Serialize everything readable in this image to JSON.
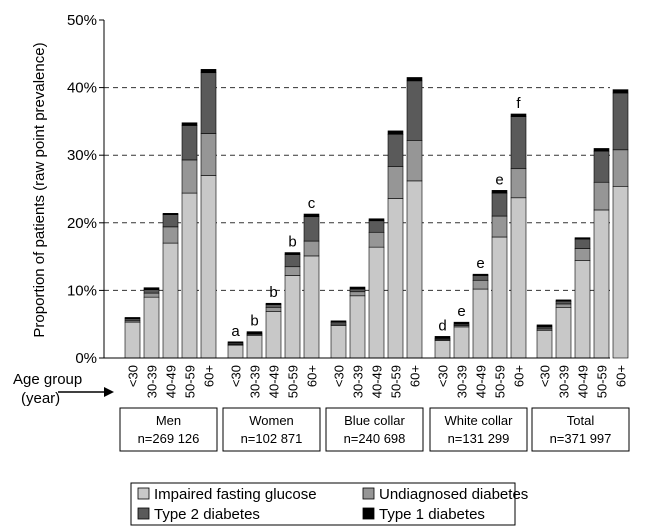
{
  "chart_data": {
    "type": "bar",
    "stacked": true,
    "ylabel": "Proportion of patients (raw point prevalence)",
    "ylim": [
      0,
      50
    ],
    "y_ticks": [
      "0%",
      "10%",
      "20%",
      "30%",
      "40%",
      "50%"
    ],
    "y_tick_values": [
      0,
      10,
      20,
      30,
      40,
      50
    ],
    "grid": "dashed horizontal lines at 10%, 20%, 30%, 40%",
    "x_axis_caption": [
      "Age group",
      "(year)"
    ],
    "age_categories": [
      "<30",
      "30-39",
      "40-49",
      "50-59",
      "60+"
    ],
    "colors": {
      "Impaired fasting glucose": "#c8c8c8",
      "Undiagnosed diabetes": "#969696",
      "Type 2 diabetes": "#5a5a5a",
      "Type 1 diabetes": "#000000"
    },
    "series_names": [
      "Impaired fasting glucose",
      "Undiagnosed diabetes",
      "Type 2 diabetes",
      "Type 1 diabetes"
    ],
    "groups": [
      {
        "title": "Men",
        "n": "n=269 126",
        "bars": [
          {
            "category": "<30",
            "values": [
              5.3,
              0.2,
              0.3,
              0.2
            ],
            "letter": ""
          },
          {
            "category": "30-39",
            "values": [
              9.0,
              0.6,
              0.5,
              0.3
            ],
            "letter": ""
          },
          {
            "category": "40-49",
            "values": [
              17.0,
              2.4,
              1.8,
              0.2
            ],
            "letter": ""
          },
          {
            "category": "50-59",
            "values": [
              24.4,
              4.9,
              5.1,
              0.4
            ],
            "letter": ""
          },
          {
            "category": "60+",
            "values": [
              27.0,
              6.2,
              9.0,
              0.5
            ],
            "letter": ""
          }
        ]
      },
      {
        "title": "Women",
        "n": "n=102 871",
        "bars": [
          {
            "category": "<30",
            "values": [
              1.9,
              0.1,
              0.2,
              0.2
            ],
            "letter": "a"
          },
          {
            "category": "30-39",
            "values": [
              3.3,
              0.2,
              0.1,
              0.3
            ],
            "letter": "b"
          },
          {
            "category": "40-49",
            "values": [
              6.9,
              0.6,
              0.4,
              0.2
            ],
            "letter": "b"
          },
          {
            "category": "50-59",
            "values": [
              12.2,
              1.3,
              1.8,
              0.3
            ],
            "letter": "b"
          },
          {
            "category": "60+",
            "values": [
              15.1,
              2.2,
              3.6,
              0.4
            ],
            "letter": "c"
          }
        ]
      },
      {
        "title": "Blue collar",
        "n": "n=240 698",
        "bars": [
          {
            "category": "<30",
            "values": [
              4.8,
              0.2,
              0.3,
              0.2
            ],
            "letter": ""
          },
          {
            "category": "30-39",
            "values": [
              9.2,
              0.6,
              0.4,
              0.3
            ],
            "letter": ""
          },
          {
            "category": "40-49",
            "values": [
              16.4,
              2.2,
              1.7,
              0.3
            ],
            "letter": ""
          },
          {
            "category": "50-59",
            "values": [
              23.6,
              4.7,
              4.8,
              0.5
            ],
            "letter": ""
          },
          {
            "category": "60+",
            "values": [
              26.2,
              6.0,
              8.8,
              0.5
            ],
            "letter": ""
          }
        ]
      },
      {
        "title": "White collar",
        "n": "n=131 299",
        "bars": [
          {
            "category": "<30",
            "values": [
              2.6,
              0.1,
              0.2,
              0.3
            ],
            "letter": "d"
          },
          {
            "category": "30-39",
            "values": [
              4.6,
              0.2,
              0.2,
              0.3
            ],
            "letter": "e"
          },
          {
            "category": "40-49",
            "values": [
              10.2,
              1.3,
              0.7,
              0.2
            ],
            "letter": "e"
          },
          {
            "category": "50-59",
            "values": [
              17.9,
              3.1,
              3.4,
              0.4
            ],
            "letter": "e"
          },
          {
            "category": "60+",
            "values": [
              23.7,
              4.3,
              7.7,
              0.4
            ],
            "letter": "f"
          }
        ]
      },
      {
        "title": "Total",
        "n": "n=371 997",
        "bars": [
          {
            "category": "<30",
            "values": [
              4.1,
              0.2,
              0.3,
              0.3
            ],
            "letter": ""
          },
          {
            "category": "30-39",
            "values": [
              7.5,
              0.5,
              0.4,
              0.2
            ],
            "letter": ""
          },
          {
            "category": "40-49",
            "values": [
              14.4,
              1.8,
              1.4,
              0.2
            ],
            "letter": ""
          },
          {
            "category": "50-59",
            "values": [
              21.9,
              4.1,
              4.6,
              0.4
            ],
            "letter": ""
          },
          {
            "category": "60+",
            "values": [
              25.4,
              5.4,
              8.4,
              0.5
            ],
            "letter": ""
          }
        ]
      }
    ],
    "legend": {
      "placement": "bottom",
      "entries": [
        "Impaired fasting glucose",
        "Undiagnosed diabetes",
        "Type 2 diabetes",
        "Type 1 diabetes"
      ]
    }
  }
}
